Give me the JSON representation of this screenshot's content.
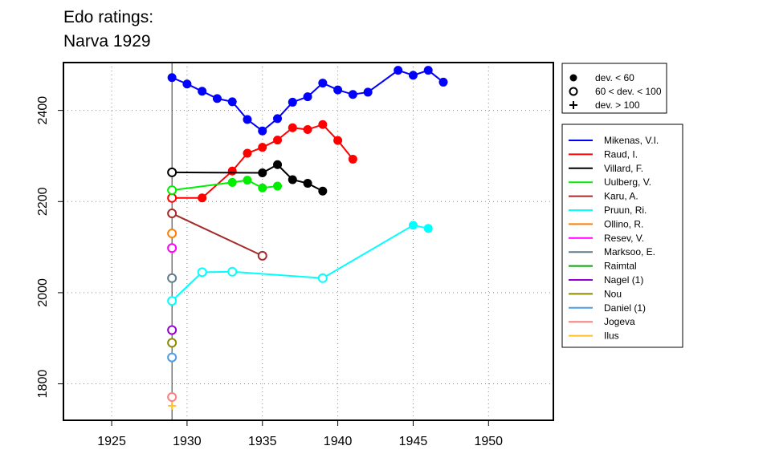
{
  "title_lines": [
    "Edo ratings:",
    "Narva 1929"
  ],
  "chart_data": {
    "type": "line",
    "title": "Edo ratings: Narva 1929",
    "xlim": [
      1921.8,
      1954.3
    ],
    "ylim": [
      1720,
      2505
    ],
    "x_ticks": [
      1925,
      1930,
      1935,
      1940,
      1945,
      1950
    ],
    "y_ticks": [
      1800,
      2000,
      2200,
      2400
    ],
    "vertical_marker_x": 1929,
    "grid": true,
    "legend_placement": "right",
    "dev_legend": [
      {
        "symbol": "filled",
        "label": "dev. < 60"
      },
      {
        "symbol": "open",
        "label": "60 < dev. < 100"
      },
      {
        "symbol": "plus",
        "label": "dev. > 100"
      }
    ],
    "series": [
      {
        "name": "Mikenas, V.I.",
        "color": "#0000ff",
        "points": [
          {
            "x": 1929,
            "y": 2472,
            "d": "filled"
          },
          {
            "x": 1930,
            "y": 2458,
            "d": "filled"
          },
          {
            "x": 1931,
            "y": 2442,
            "d": "filled"
          },
          {
            "x": 1932,
            "y": 2426,
            "d": "filled"
          },
          {
            "x": 1933,
            "y": 2419,
            "d": "filled"
          },
          {
            "x": 1934,
            "y": 2380,
            "d": "filled"
          },
          {
            "x": 1935,
            "y": 2355,
            "d": "filled"
          },
          {
            "x": 1936,
            "y": 2382,
            "d": "filled"
          },
          {
            "x": 1937,
            "y": 2418,
            "d": "filled"
          },
          {
            "x": 1938,
            "y": 2430,
            "d": "filled"
          },
          {
            "x": 1939,
            "y": 2460,
            "d": "filled"
          },
          {
            "x": 1940,
            "y": 2445,
            "d": "filled"
          },
          {
            "x": 1941,
            "y": 2435,
            "d": "filled"
          },
          {
            "x": 1942,
            "y": 2440,
            "d": "filled"
          },
          {
            "x": 1944,
            "y": 2488,
            "d": "filled"
          },
          {
            "x": 1945,
            "y": 2477,
            "d": "filled"
          },
          {
            "x": 1946,
            "y": 2488,
            "d": "filled"
          },
          {
            "x": 1947,
            "y": 2462,
            "d": "filled"
          }
        ]
      },
      {
        "name": "Raud, I.",
        "color": "#ff0000",
        "points": [
          {
            "x": 1929,
            "y": 2208,
            "d": "open"
          },
          {
            "x": 1931,
            "y": 2208,
            "d": "filled"
          },
          {
            "x": 1933,
            "y": 2267,
            "d": "filled"
          },
          {
            "x": 1934,
            "y": 2306,
            "d": "filled"
          },
          {
            "x": 1935,
            "y": 2319,
            "d": "filled"
          },
          {
            "x": 1936,
            "y": 2335,
            "d": "filled"
          },
          {
            "x": 1937,
            "y": 2362,
            "d": "filled"
          },
          {
            "x": 1938,
            "y": 2358,
            "d": "filled"
          },
          {
            "x": 1939,
            "y": 2369,
            "d": "filled"
          },
          {
            "x": 1940,
            "y": 2334,
            "d": "filled"
          },
          {
            "x": 1941,
            "y": 2293,
            "d": "filled"
          }
        ]
      },
      {
        "name": "Villard, F.",
        "color": "#000000",
        "points": [
          {
            "x": 1929,
            "y": 2264,
            "d": "open"
          },
          {
            "x": 1935,
            "y": 2263,
            "d": "filled"
          },
          {
            "x": 1936,
            "y": 2281,
            "d": "filled"
          },
          {
            "x": 1937,
            "y": 2248,
            "d": "filled"
          },
          {
            "x": 1938,
            "y": 2240,
            "d": "filled"
          },
          {
            "x": 1939,
            "y": 2223,
            "d": "filled"
          }
        ]
      },
      {
        "name": "Uulberg, V.",
        "color": "#00ee00",
        "points": [
          {
            "x": 1929,
            "y": 2225,
            "d": "open"
          },
          {
            "x": 1933,
            "y": 2242,
            "d": "filled"
          },
          {
            "x": 1934,
            "y": 2247,
            "d": "filled"
          },
          {
            "x": 1935,
            "y": 2230,
            "d": "filled"
          },
          {
            "x": 1936,
            "y": 2234,
            "d": "filled"
          }
        ]
      },
      {
        "name": "Karu, A.",
        "color": "#a52a2a",
        "points": [
          {
            "x": 1929,
            "y": 2174,
            "d": "open"
          },
          {
            "x": 1935,
            "y": 2081,
            "d": "open"
          }
        ]
      },
      {
        "name": "Pruun, Ri.",
        "color": "#00ffff",
        "points": [
          {
            "x": 1929,
            "y": 1982,
            "d": "open"
          },
          {
            "x": 1931,
            "y": 2045,
            "d": "open"
          },
          {
            "x": 1933,
            "y": 2046,
            "d": "open"
          },
          {
            "x": 1939,
            "y": 2032,
            "d": "open"
          },
          {
            "x": 1945,
            "y": 2148,
            "d": "filled"
          },
          {
            "x": 1946,
            "y": 2141,
            "d": "filled"
          }
        ]
      },
      {
        "name": "Ollino, R.",
        "color": "#ff7f00",
        "points": [
          {
            "x": 1929,
            "y": 2130,
            "d": "open"
          }
        ]
      },
      {
        "name": "Resev, V.",
        "color": "#ff00ff",
        "points": [
          {
            "x": 1929,
            "y": 2098,
            "d": "open"
          }
        ]
      },
      {
        "name": "Marksoo, E.",
        "color": "#607b8b",
        "points": [
          {
            "x": 1929,
            "y": 2032,
            "d": "open"
          }
        ]
      },
      {
        "name": "Raimtal",
        "color": "#00aa00",
        "points": []
      },
      {
        "name": "Nagel (1)",
        "color": "#9400d3",
        "points": [
          {
            "x": 1929,
            "y": 1918,
            "d": "open"
          }
        ]
      },
      {
        "name": "Nou",
        "color": "#8b8b00",
        "points": [
          {
            "x": 1929,
            "y": 1890,
            "d": "open"
          }
        ]
      },
      {
        "name": "Daniel (1)",
        "color": "#4a9ee8",
        "points": [
          {
            "x": 1929,
            "y": 1858,
            "d": "open"
          }
        ]
      },
      {
        "name": "Jogeva",
        "color": "#ff7f7f",
        "points": [
          {
            "x": 1929,
            "y": 1771,
            "d": "open"
          }
        ]
      },
      {
        "name": "Ilus",
        "color": "#ffc125",
        "points": [
          {
            "x": 1929,
            "y": 1752,
            "d": "plus"
          }
        ]
      }
    ]
  }
}
